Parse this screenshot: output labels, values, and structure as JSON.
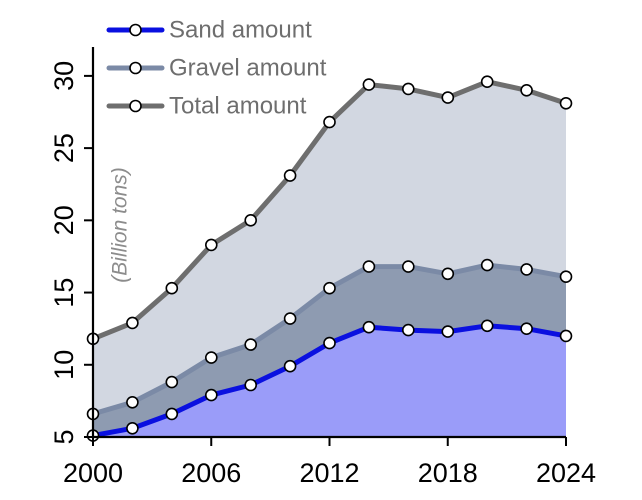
{
  "chart_data": {
    "type": "area",
    "title": "",
    "xlabel": "",
    "ylabel": "(Billion tons)",
    "x": [
      2000,
      2002,
      2004,
      2006,
      2008,
      2010,
      2012,
      2014,
      2016,
      2018,
      2020,
      2022,
      2024
    ],
    "xticks": [
      "2000",
      "2006",
      "2012",
      "2018",
      "2024"
    ],
    "yticks": [
      "5",
      "10",
      "15",
      "20",
      "25",
      "30"
    ],
    "xlim": [
      2000,
      2024
    ],
    "ylim": [
      5,
      32
    ],
    "grid": false,
    "legend_position": "top-left",
    "series": [
      {
        "name": "Sand amount",
        "line_color": "#0a10e0",
        "fill_color": "#9a9cf9",
        "values": [
          5.1,
          5.6,
          6.6,
          7.9,
          8.6,
          9.9,
          11.5,
          12.6,
          12.4,
          12.3,
          12.7,
          12.5,
          12.0
        ]
      },
      {
        "name": "Gravel amount",
        "line_color": "#7b8aa6",
        "fill_color": "#8e9bb1",
        "values": [
          6.6,
          7.4,
          8.8,
          10.5,
          11.4,
          13.2,
          15.3,
          16.8,
          16.8,
          16.3,
          16.9,
          16.6,
          16.1
        ]
      },
      {
        "name": "Total amount",
        "line_color": "#6e6e6e",
        "fill_color": "#d2d7e1",
        "values": [
          11.8,
          12.9,
          15.3,
          18.3,
          20.0,
          23.1,
          26.8,
          29.4,
          29.1,
          28.5,
          29.6,
          29.0,
          28.1
        ]
      }
    ]
  }
}
